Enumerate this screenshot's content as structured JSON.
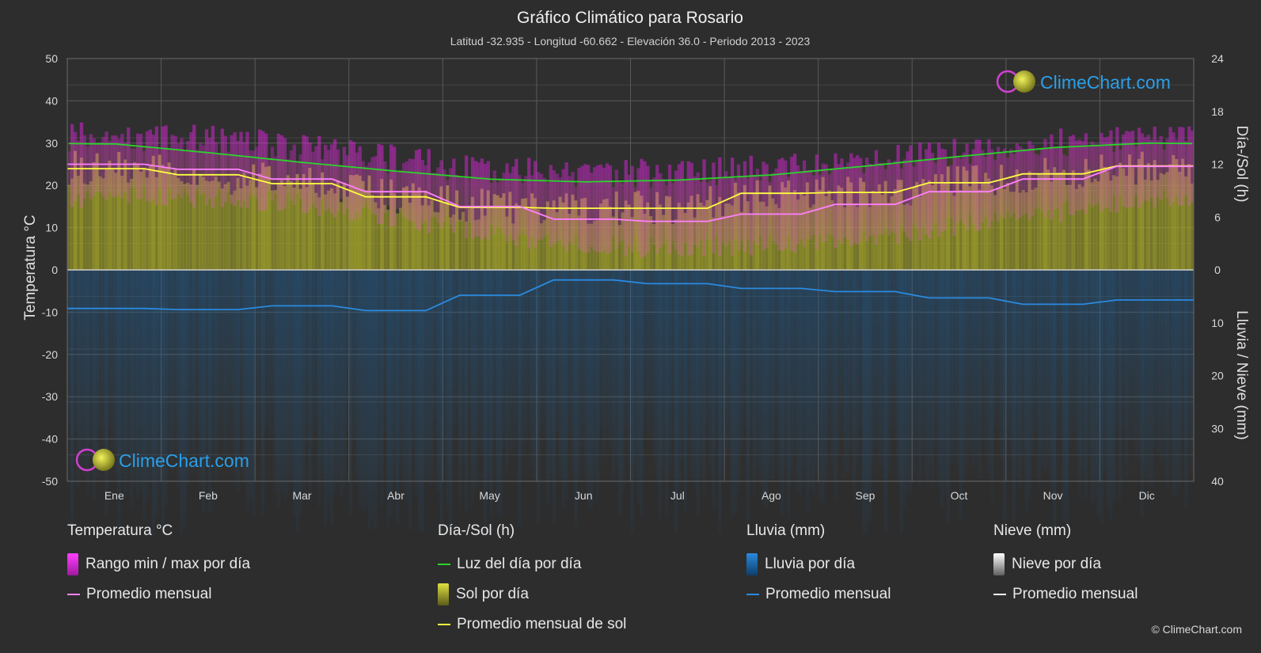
{
  "title": "Gráfico Climático para Rosario",
  "subtitle": "Latitud -32.935 - Longitud -60.662 - Elevación 36.0 - Periodo 2013 - 2023",
  "logo_text": "ClimeChart.com",
  "copyright": "© ClimeChart.com",
  "colors": {
    "background": "#2d2d2d",
    "temp_range": "#e020e0",
    "temp_avg": "#ff80ff",
    "daylight": "#2bd42b",
    "sunshine_fill": "#a8a82a",
    "sunshine_avg": "#ffff40",
    "rain_fill": "#1e6fb0",
    "rain_avg": "#2a8ae0",
    "snow_avg": "#ffffff",
    "logo_text": "#2a9fe8"
  },
  "chart_data": {
    "type": "line",
    "months": [
      "Ene",
      "Feb",
      "Mar",
      "Abr",
      "May",
      "Jun",
      "Jul",
      "Ago",
      "Sep",
      "Oct",
      "Nov",
      "Dic"
    ],
    "left_axis": {
      "label": "Temperatura °C",
      "min": -50,
      "max": 50,
      "ticks": [
        50,
        40,
        30,
        20,
        10,
        0,
        -10,
        -20,
        -30,
        -40,
        -50
      ]
    },
    "right_axis_top": {
      "label": "Día-/Sol (h)",
      "min": 0,
      "max": 24,
      "ticks": [
        24,
        18,
        12,
        6,
        0
      ]
    },
    "right_axis_bottom": {
      "label": "Lluvia / Nieve (mm)",
      "min": 0,
      "max": 40,
      "ticks": [
        0,
        10,
        20,
        30,
        40
      ]
    },
    "series": {
      "temp_max_avg": [
        28,
        27.5,
        25.5,
        22.5,
        20,
        19.5,
        19.5,
        20.5,
        22,
        24.5,
        26.5,
        28
      ],
      "temp_min_avg": [
        20,
        19.5,
        18,
        15,
        11,
        8,
        7.5,
        8.5,
        10,
        13,
        16,
        19
      ],
      "temp_mean": [
        25,
        23.8,
        21.5,
        18.5,
        15,
        12,
        11.5,
        13.2,
        15.5,
        18.5,
        21.5,
        24.5
      ],
      "daylight_hours": [
        14.3,
        13.3,
        12.2,
        11.2,
        10.3,
        10,
        10.2,
        10.8,
        11.8,
        12.9,
        13.9,
        14.4
      ],
      "sunshine_hours": [
        11.5,
        10.8,
        9.8,
        8.3,
        7.1,
        7,
        7,
        8.7,
        8.8,
        9.9,
        10.9,
        11.8
      ],
      "rain_mean_mm": [
        7.3,
        7.5,
        6.8,
        7.7,
        4.8,
        1.9,
        2.6,
        3.5,
        4.1,
        5.3,
        6.5,
        5.7
      ],
      "snow_mean_mm": [
        0,
        0,
        0,
        0,
        0,
        0,
        0,
        0,
        0,
        0,
        0,
        0
      ]
    },
    "grid": true
  },
  "legend": {
    "temperature": {
      "title": "Temperatura °C",
      "items": [
        "Rango min / max por día",
        "Promedio mensual"
      ]
    },
    "sun": {
      "title": "Día-/Sol (h)",
      "items": [
        "Luz del día por día",
        "Sol por día",
        "Promedio mensual de sol"
      ]
    },
    "rain": {
      "title": "Lluvia (mm)",
      "items": [
        "Lluvia por día",
        "Promedio mensual"
      ]
    },
    "snow": {
      "title": "Nieve (mm)",
      "items": [
        "Nieve por día",
        "Promedio mensual"
      ]
    }
  }
}
